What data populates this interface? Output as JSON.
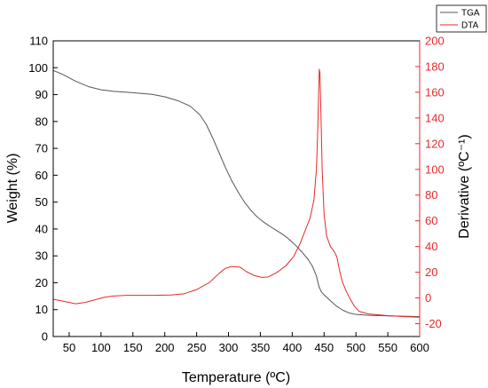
{
  "chart_data": {
    "type": "line",
    "xlabel": "Temperature (ºC)",
    "ylabel_left": "Weight (%)",
    "ylabel_right": "Derivative (ºC⁻¹)",
    "xlim": [
      25,
      600
    ],
    "ylim_left": [
      0,
      110
    ],
    "ylim_right": [
      -30,
      200
    ],
    "x_ticks": [
      50,
      100,
      150,
      200,
      250,
      300,
      350,
      400,
      450,
      500,
      550,
      600
    ],
    "y_left_ticks": [
      0,
      10,
      20,
      30,
      40,
      50,
      60,
      70,
      80,
      90,
      100,
      110
    ],
    "y_right_ticks": [
      -20,
      0,
      20,
      40,
      60,
      80,
      100,
      120,
      140,
      160,
      180,
      200
    ],
    "grid": false,
    "legend_position": "top-right",
    "series": [
      {
        "name": "TGA",
        "axis": "left",
        "color": "#555555",
        "points": [
          [
            25,
            99
          ],
          [
            40,
            97.5
          ],
          [
            60,
            95
          ],
          [
            80,
            93
          ],
          [
            100,
            91.8
          ],
          [
            120,
            91.2
          ],
          [
            150,
            90.7
          ],
          [
            180,
            90.1
          ],
          [
            200,
            89.2
          ],
          [
            220,
            87.8
          ],
          [
            240,
            85.7
          ],
          [
            255,
            82.5
          ],
          [
            265,
            79
          ],
          [
            275,
            74
          ],
          [
            285,
            68.5
          ],
          [
            295,
            63
          ],
          [
            305,
            58
          ],
          [
            315,
            53.8
          ],
          [
            325,
            50
          ],
          [
            335,
            47
          ],
          [
            345,
            44.5
          ],
          [
            355,
            42.6
          ],
          [
            365,
            41
          ],
          [
            375,
            39.5
          ],
          [
            385,
            38
          ],
          [
            395,
            36.2
          ],
          [
            405,
            34
          ],
          [
            415,
            31.5
          ],
          [
            425,
            28.7
          ],
          [
            432,
            26
          ],
          [
            438,
            22.5
          ],
          [
            442,
            18.5
          ],
          [
            446,
            16.5
          ],
          [
            450,
            15.5
          ],
          [
            460,
            13.3
          ],
          [
            470,
            11.2
          ],
          [
            480,
            9.7
          ],
          [
            490,
            8.7
          ],
          [
            500,
            8.2
          ],
          [
            520,
            7.9
          ],
          [
            550,
            7.7
          ],
          [
            580,
            7.5
          ],
          [
            600,
            7.4
          ]
        ]
      },
      {
        "name": "DTA",
        "axis": "right",
        "color": "#e8282b",
        "points": [
          [
            25,
            -1
          ],
          [
            45,
            -3
          ],
          [
            60,
            -4.5
          ],
          [
            75,
            -3.5
          ],
          [
            90,
            -1.5
          ],
          [
            105,
            0.5
          ],
          [
            120,
            1.5
          ],
          [
            140,
            2
          ],
          [
            180,
            2
          ],
          [
            210,
            2.3
          ],
          [
            230,
            3.2
          ],
          [
            250,
            6.5
          ],
          [
            270,
            12
          ],
          [
            285,
            19
          ],
          [
            295,
            23
          ],
          [
            305,
            24.5
          ],
          [
            318,
            24
          ],
          [
            328,
            20.5
          ],
          [
            340,
            17.5
          ],
          [
            352,
            16
          ],
          [
            362,
            16.3
          ],
          [
            375,
            19.5
          ],
          [
            390,
            25
          ],
          [
            402,
            32
          ],
          [
            412,
            42
          ],
          [
            420,
            52
          ],
          [
            428,
            62
          ],
          [
            434,
            76
          ],
          [
            438,
            100
          ],
          [
            440,
            130
          ],
          [
            441.5,
            160
          ],
          [
            442.5,
            178
          ],
          [
            443.5,
            175
          ],
          [
            445,
            145
          ],
          [
            447,
            100
          ],
          [
            450,
            65
          ],
          [
            454,
            48
          ],
          [
            460,
            40
          ],
          [
            466,
            36
          ],
          [
            470,
            32
          ],
          [
            474,
            22
          ],
          [
            479,
            12
          ],
          [
            485,
            5
          ],
          [
            490,
            0
          ],
          [
            497,
            -6
          ],
          [
            505,
            -10.5
          ],
          [
            520,
            -12.5
          ],
          [
            550,
            -13.8
          ],
          [
            580,
            -14.6
          ],
          [
            600,
            -15
          ]
        ]
      }
    ]
  }
}
